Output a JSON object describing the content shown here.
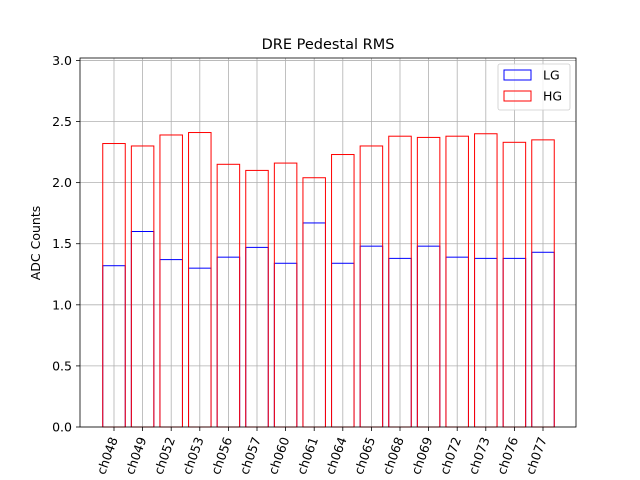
{
  "chart_data": {
    "type": "bar",
    "title": "DRE Pedestal RMS",
    "xlabel": "",
    "ylabel": "ADC Counts",
    "categories": [
      "ch048",
      "ch049",
      "ch052",
      "ch053",
      "ch056",
      "ch057",
      "ch060",
      "ch061",
      "ch064",
      "ch065",
      "ch068",
      "ch069",
      "ch072",
      "ch073",
      "ch076",
      "ch077"
    ],
    "series": [
      {
        "name": "LG",
        "color": "#0000ff",
        "values": [
          1.32,
          1.6,
          1.37,
          1.3,
          1.39,
          1.47,
          1.34,
          1.67,
          1.34,
          1.48,
          1.38,
          1.48,
          1.39,
          1.38,
          1.38,
          1.43
        ]
      },
      {
        "name": "HG",
        "color": "#ff0000",
        "values": [
          2.32,
          2.3,
          2.39,
          2.41,
          2.15,
          2.1,
          2.16,
          2.04,
          2.23,
          2.3,
          2.38,
          2.37,
          2.38,
          2.4,
          2.33,
          2.35
        ]
      }
    ],
    "ylim": [
      0,
      3.02
    ],
    "yticks": [
      "0.0",
      "0.5",
      "1.0",
      "1.5",
      "2.0",
      "2.5",
      "3.0"
    ],
    "grid": true,
    "legend_position": "top-right",
    "bar_style": "unfilled-outline",
    "xtick_rotation": "70deg"
  }
}
